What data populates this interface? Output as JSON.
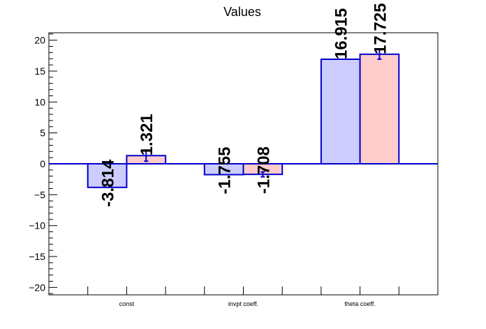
{
  "chart_data": {
    "type": "bar",
    "title": "Values",
    "xlabel": "",
    "ylabel": "",
    "categories": [
      "const",
      "invpt coeff.",
      "theta coeff."
    ],
    "series": [
      {
        "values": [
          -3.814,
          -1.755,
          16.915
        ],
        "labels": [
          "-3.814",
          "-1.755",
          "16.915"
        ],
        "errors": [
          0,
          0,
          0
        ],
        "fill": "#ccccff",
        "stroke": "#0000cc"
      },
      {
        "values": [
          1.321,
          -1.708,
          17.725
        ],
        "labels": [
          "1.321",
          "-1.708",
          "17.725"
        ],
        "errors": [
          0.9,
          0.4,
          0.8
        ],
        "fill": "#ffcccc",
        "stroke": "#0000cc"
      }
    ],
    "ylim": [
      -21.2,
      21.2
    ],
    "yticks": [
      -20,
      -15,
      -10,
      -5,
      0,
      5,
      10,
      15,
      20
    ],
    "ytick_labels": [
      "−20",
      "−15",
      "−10",
      "−5",
      "0",
      "5",
      "10",
      "15",
      "20"
    ],
    "grid": false,
    "legend": "none",
    "colors": {
      "axis": "#000000",
      "zero_line": "#0000cc"
    }
  }
}
